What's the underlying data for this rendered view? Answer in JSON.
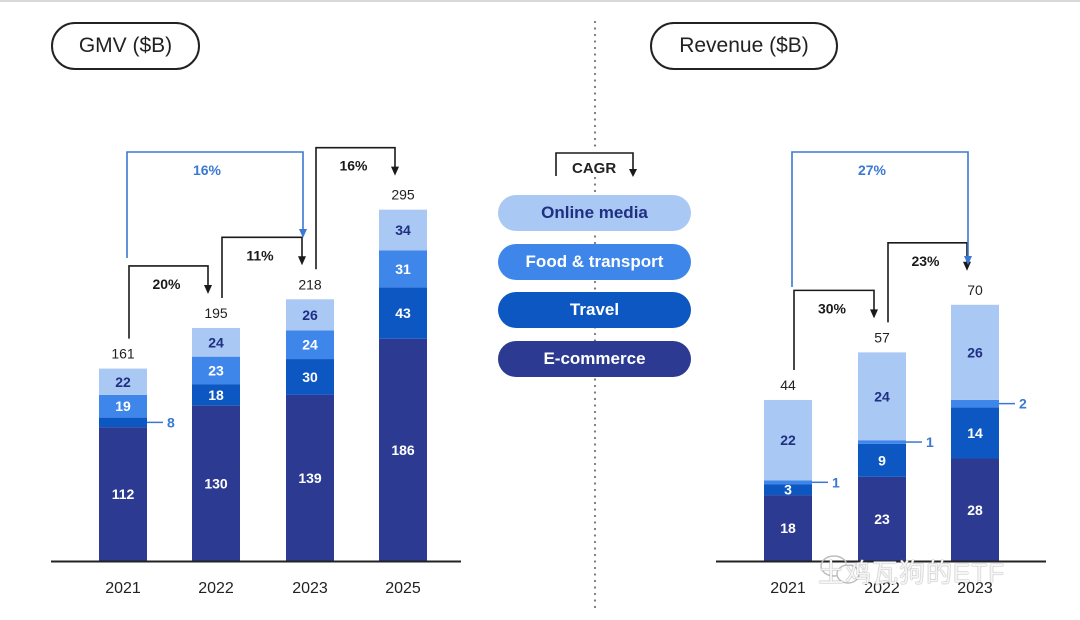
{
  "colors": {
    "online_media": "#aac8f4",
    "food_transport": "#3f86ea",
    "travel": "#0d57c2",
    "ecommerce": "#2c3a92",
    "cagr_blue": "#3a78d4",
    "cagr_black": "#1a1a1a",
    "axis": "#222222"
  },
  "legend": {
    "cagr_label": "CAGR",
    "items": [
      {
        "label": "Online media",
        "key": "online_media"
      },
      {
        "label": "Food & transport",
        "key": "food_transport"
      },
      {
        "label": "Travel",
        "key": "travel"
      },
      {
        "label": "E-commerce",
        "key": "ecommerce"
      }
    ]
  },
  "watermark": "土鸡瓦狗的ETF",
  "chart_data": [
    {
      "type": "bar",
      "stacked": true,
      "title": "GMV ($B)",
      "categories": [
        "2021",
        "2022",
        "2023",
        "2025"
      ],
      "series": [
        {
          "name": "E-commerce",
          "key": "ecommerce",
          "values": [
            112,
            130,
            139,
            186
          ]
        },
        {
          "name": "Travel",
          "key": "travel",
          "values": [
            8,
            18,
            30,
            43
          ]
        },
        {
          "name": "Food & transport",
          "key": "food_transport",
          "values": [
            19,
            23,
            24,
            31
          ]
        },
        {
          "name": "Online media",
          "key": "online_media",
          "values": [
            22,
            24,
            26,
            34
          ]
        }
      ],
      "totals": [
        161,
        195,
        218,
        295
      ],
      "ylim": [
        0,
        300
      ],
      "grid": false,
      "cagr_annotations": [
        {
          "from": "2021",
          "to": "2022",
          "label": "20%",
          "color": "black"
        },
        {
          "from": "2022",
          "to": "2023",
          "label": "11%",
          "color": "black"
        },
        {
          "from": "2021",
          "to": "2023",
          "label": "16%",
          "color": "blue"
        },
        {
          "from": "2023",
          "to": "2025",
          "label": "16%",
          "color": "black"
        }
      ]
    },
    {
      "type": "bar",
      "stacked": true,
      "title": "Revenue ($B)",
      "categories": [
        "2021",
        "2022",
        "2023"
      ],
      "series": [
        {
          "name": "E-commerce",
          "key": "ecommerce",
          "values": [
            18,
            23,
            28
          ]
        },
        {
          "name": "Travel",
          "key": "travel",
          "values": [
            3,
            9,
            14
          ]
        },
        {
          "name": "Food & transport",
          "key": "food_transport",
          "values": [
            1,
            1,
            2
          ]
        },
        {
          "name": "Online media",
          "key": "online_media",
          "values": [
            22,
            24,
            26
          ]
        }
      ],
      "totals": [
        44,
        57,
        70
      ],
      "ylim": [
        0,
        80
      ],
      "grid": false,
      "cagr_annotations": [
        {
          "from": "2021",
          "to": "2022",
          "label": "30%",
          "color": "black"
        },
        {
          "from": "2022",
          "to": "2023",
          "label": "23%",
          "color": "black"
        },
        {
          "from": "2021",
          "to": "2023",
          "label": "27%",
          "color": "blue"
        }
      ]
    }
  ]
}
